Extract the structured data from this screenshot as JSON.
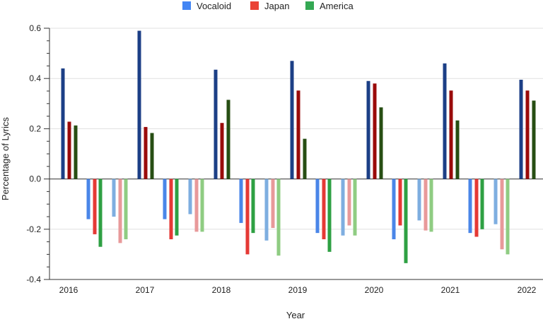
{
  "chart_data": {
    "type": "bar",
    "xlabel": "Year",
    "ylabel": "Percentage of Lyrics",
    "ylim": [
      -0.4,
      0.6
    ],
    "yticks": [
      0.6,
      0.4,
      0.2,
      0.0,
      -0.2,
      -0.4
    ],
    "ytick_labels": [
      "0.6",
      "0.4",
      "0.2",
      "0.0",
      "-0.2",
      "-0.4"
    ],
    "grid": true,
    "legend_position": "top-center",
    "legend": [
      {
        "name": "Vocaloid",
        "color": "#4285f4"
      },
      {
        "name": "Japan",
        "color": "#ea4335"
      },
      {
        "name": "America",
        "color": "#34a853"
      }
    ],
    "categories": [
      "2016",
      "2017",
      "2018",
      "2019",
      "2020",
      "2021",
      "2022"
    ],
    "series": [
      {
        "name": "Vocaloid positive",
        "color": "#1c3f86",
        "values": [
          0.44,
          0.59,
          0.435,
          0.47,
          0.39,
          0.46,
          0.395
        ]
      },
      {
        "name": "Japan positive",
        "color": "#9a0a0a",
        "values": [
          0.228,
          0.207,
          0.223,
          0.352,
          0.38,
          0.352,
          0.352
        ]
      },
      {
        "name": "America positive",
        "color": "#274e13",
        "values": [
          0.213,
          0.183,
          0.315,
          0.16,
          0.285,
          0.233,
          0.312
        ]
      },
      {
        "name": "Vocaloid negative",
        "color": "#4a86e8",
        "values": [
          -0.16,
          -0.16,
          -0.175,
          -0.215,
          -0.24,
          -0.215,
          null
        ]
      },
      {
        "name": "Japan negative",
        "color": "#e53935",
        "values": [
          -0.22,
          -0.24,
          -0.3,
          -0.24,
          -0.185,
          -0.23,
          null
        ]
      },
      {
        "name": "America negative",
        "color": "#2ea043",
        "values": [
          -0.27,
          -0.225,
          -0.215,
          -0.29,
          -0.335,
          -0.2,
          null
        ]
      },
      {
        "name": "Vocaloid negative (light)",
        "color": "#7eaee0",
        "values": [
          -0.15,
          -0.14,
          -0.245,
          -0.225,
          -0.165,
          -0.18,
          null
        ]
      },
      {
        "name": "Japan negative (light)",
        "color": "#e8999a",
        "values": [
          -0.255,
          -0.21,
          -0.195,
          -0.185,
          -0.205,
          -0.28,
          null
        ]
      },
      {
        "name": "America negative (light)",
        "color": "#8fcc82",
        "values": [
          -0.24,
          -0.21,
          -0.305,
          -0.225,
          -0.21,
          -0.3,
          null
        ]
      }
    ]
  }
}
